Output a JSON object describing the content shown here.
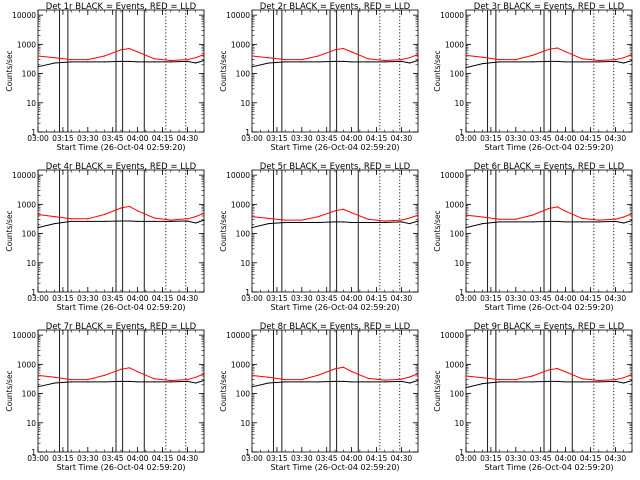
{
  "figure": {
    "xlabel": "Start Time (26-Oct-04 02:59:20)",
    "ylabel": "Counts/sec",
    "colors": {
      "events": "#000000",
      "lld": "#ff0000",
      "axes": "#000000"
    }
  },
  "chart_data": [
    {
      "type": "line",
      "title": "Det 1r BLACK = Events, RED = LLD",
      "xlabel": "Start Time (26-Oct-04 02:59:20)",
      "ylabel": "Counts/sec",
      "xticks": [
        "03:00",
        "03:15",
        "03:30",
        "03:45",
        "04:00",
        "04:15",
        "04:30"
      ],
      "yticks": [
        "1",
        "10",
        "100",
        "1000",
        "10000"
      ],
      "xlim": [
        "03:00",
        "04:40"
      ],
      "ylim": [
        1,
        15000
      ],
      "yscale": "log",
      "grid": false,
      "solid_markers": [
        "03:13",
        "03:18",
        "03:47",
        "03:51",
        "04:04"
      ],
      "dotted_markers": [
        "04:17",
        "04:29"
      ],
      "series": [
        {
          "name": "LLD",
          "color": "#ff0000",
          "x": [
            "03:00",
            "03:10",
            "03:20",
            "03:30",
            "03:40",
            "03:50",
            "03:55",
            "04:00",
            "04:10",
            "04:20",
            "04:30",
            "04:35",
            "04:40"
          ],
          "values": [
            400,
            350,
            300,
            300,
            400,
            650,
            720,
            550,
            320,
            280,
            300,
            350,
            450
          ]
        },
        {
          "name": "Events",
          "color": "#000000",
          "x": [
            "03:00",
            "03:10",
            "03:20",
            "03:30",
            "03:40",
            "03:50",
            "03:55",
            "04:00",
            "04:10",
            "04:20",
            "04:30",
            "04:35",
            "04:40"
          ],
          "values": [
            170,
            230,
            250,
            250,
            250,
            260,
            260,
            250,
            250,
            250,
            260,
            230,
            280
          ]
        }
      ]
    },
    {
      "type": "line",
      "title": "Det 2r BLACK = Events, RED = LLD",
      "xlabel": "Start Time (26-Oct-04 02:59:20)",
      "ylabel": "Counts/sec",
      "xticks": [
        "03:00",
        "03:15",
        "03:30",
        "03:45",
        "04:00",
        "04:15",
        "04:30"
      ],
      "yticks": [
        "1",
        "10",
        "100",
        "1000",
        "10000"
      ],
      "xlim": [
        "03:00",
        "04:40"
      ],
      "ylim": [
        1,
        15000
      ],
      "yscale": "log",
      "grid": false,
      "solid_markers": [
        "03:13",
        "03:18",
        "03:47",
        "03:51",
        "04:04"
      ],
      "dotted_markers": [
        "04:17",
        "04:29"
      ],
      "series": [
        {
          "name": "LLD",
          "color": "#ff0000",
          "x": [
            "03:00",
            "03:10",
            "03:20",
            "03:30",
            "03:40",
            "03:50",
            "03:55",
            "04:00",
            "04:10",
            "04:20",
            "04:30",
            "04:35",
            "04:40"
          ],
          "values": [
            400,
            350,
            300,
            300,
            400,
            650,
            720,
            550,
            320,
            280,
            300,
            350,
            450
          ]
        },
        {
          "name": "Events",
          "color": "#000000",
          "x": [
            "03:00",
            "03:10",
            "03:20",
            "03:30",
            "03:40",
            "03:50",
            "03:55",
            "04:00",
            "04:10",
            "04:20",
            "04:30",
            "04:35",
            "04:40"
          ],
          "values": [
            170,
            230,
            250,
            250,
            250,
            260,
            260,
            250,
            250,
            250,
            260,
            230,
            280
          ]
        }
      ]
    },
    {
      "type": "line",
      "title": "Det 3r BLACK = Events, RED = LLD",
      "xlabel": "Start Time (26-Oct-04 02:59:20)",
      "ylabel": "Counts/sec",
      "xticks": [
        "03:00",
        "03:15",
        "03:30",
        "03:45",
        "04:00",
        "04:15",
        "04:30"
      ],
      "yticks": [
        "1",
        "10",
        "100",
        "1000",
        "10000"
      ],
      "xlim": [
        "03:00",
        "04:40"
      ],
      "ylim": [
        1,
        15000
      ],
      "yscale": "log",
      "grid": false,
      "solid_markers": [
        "03:13",
        "03:18",
        "03:47",
        "03:51",
        "04:04"
      ],
      "dotted_markers": [
        "04:17",
        "04:29"
      ],
      "series": [
        {
          "name": "LLD",
          "color": "#ff0000",
          "x": [
            "03:00",
            "03:10",
            "03:20",
            "03:30",
            "03:40",
            "03:50",
            "03:55",
            "04:00",
            "04:10",
            "04:20",
            "04:30",
            "04:35",
            "04:40"
          ],
          "values": [
            420,
            360,
            300,
            300,
            420,
            680,
            750,
            560,
            320,
            280,
            300,
            350,
            450
          ]
        },
        {
          "name": "Events",
          "color": "#000000",
          "x": [
            "03:00",
            "03:10",
            "03:20",
            "03:30",
            "03:40",
            "03:50",
            "03:55",
            "04:00",
            "04:10",
            "04:20",
            "04:30",
            "04:35",
            "04:40"
          ],
          "values": [
            160,
            220,
            250,
            250,
            250,
            260,
            260,
            250,
            250,
            250,
            260,
            230,
            280
          ]
        }
      ]
    },
    {
      "type": "line",
      "title": "Det 4r BLACK = Events, RED = LLD",
      "xlabel": "Start Time (26-Oct-04 02:59:20)",
      "ylabel": "Counts/sec",
      "xticks": [
        "03:00",
        "03:15",
        "03:30",
        "03:45",
        "04:00",
        "04:15",
        "04:30"
      ],
      "yticks": [
        "1",
        "10",
        "100",
        "1000",
        "10000"
      ],
      "xlim": [
        "03:00",
        "04:40"
      ],
      "ylim": [
        1,
        15000
      ],
      "yscale": "log",
      "grid": false,
      "solid_markers": [
        "03:13",
        "03:18",
        "03:47",
        "03:51",
        "04:04"
      ],
      "dotted_markers": [
        "04:17",
        "04:29"
      ],
      "series": [
        {
          "name": "LLD",
          "color": "#ff0000",
          "x": [
            "03:00",
            "03:10",
            "03:20",
            "03:30",
            "03:40",
            "03:50",
            "03:55",
            "04:00",
            "04:10",
            "04:20",
            "04:30",
            "04:35",
            "04:40"
          ],
          "values": [
            450,
            380,
            320,
            320,
            450,
            750,
            850,
            600,
            340,
            290,
            320,
            380,
            500
          ]
        },
        {
          "name": "Events",
          "color": "#000000",
          "x": [
            "03:00",
            "03:10",
            "03:20",
            "03:30",
            "03:40",
            "03:50",
            "03:55",
            "04:00",
            "04:10",
            "04:20",
            "04:30",
            "04:35",
            "04:40"
          ],
          "values": [
            160,
            220,
            260,
            260,
            260,
            270,
            270,
            260,
            260,
            260,
            270,
            230,
            290
          ]
        }
      ]
    },
    {
      "type": "line",
      "title": "Det 5r BLACK = Events, RED = LLD",
      "xlabel": "Start Time (26-Oct-04 02:59:20)",
      "ylabel": "Counts/sec",
      "xticks": [
        "03:00",
        "03:15",
        "03:30",
        "03:45",
        "04:00",
        "04:15",
        "04:30"
      ],
      "yticks": [
        "1",
        "10",
        "100",
        "1000",
        "10000"
      ],
      "xlim": [
        "03:00",
        "04:40"
      ],
      "ylim": [
        1,
        15000
      ],
      "yscale": "log",
      "grid": false,
      "solid_markers": [
        "03:13",
        "03:18",
        "03:47",
        "03:51",
        "04:04"
      ],
      "dotted_markers": [
        "04:17",
        "04:29"
      ],
      "series": [
        {
          "name": "LLD",
          "color": "#ff0000",
          "x": [
            "03:00",
            "03:10",
            "03:20",
            "03:30",
            "03:40",
            "03:50",
            "03:55",
            "04:00",
            "04:10",
            "04:20",
            "04:30",
            "04:35",
            "04:40"
          ],
          "values": [
            380,
            330,
            290,
            290,
            380,
            600,
            680,
            520,
            310,
            270,
            290,
            340,
            430
          ]
        },
        {
          "name": "Events",
          "color": "#000000",
          "x": [
            "03:00",
            "03:10",
            "03:20",
            "03:30",
            "03:40",
            "03:50",
            "03:55",
            "04:00",
            "04:10",
            "04:20",
            "04:30",
            "04:35",
            "04:40"
          ],
          "values": [
            160,
            220,
            240,
            240,
            240,
            250,
            250,
            240,
            240,
            240,
            250,
            220,
            270
          ]
        }
      ]
    },
    {
      "type": "line",
      "title": "Det 6r BLACK = Events, RED = LLD",
      "xlabel": "Start Time (26-Oct-04 02:59:20)",
      "ylabel": "Counts/sec",
      "xticks": [
        "03:00",
        "03:15",
        "03:30",
        "03:45",
        "04:00",
        "04:15",
        "04:30"
      ],
      "yticks": [
        "1",
        "10",
        "100",
        "1000",
        "10000"
      ],
      "xlim": [
        "03:00",
        "04:40"
      ],
      "ylim": [
        1,
        15000
      ],
      "yscale": "log",
      "grid": false,
      "solid_markers": [
        "03:13",
        "03:18",
        "03:47",
        "03:51",
        "04:04"
      ],
      "dotted_markers": [
        "04:17",
        "04:29"
      ],
      "series": [
        {
          "name": "LLD",
          "color": "#ff0000",
          "x": [
            "03:00",
            "03:10",
            "03:20",
            "03:30",
            "03:40",
            "03:50",
            "03:55",
            "04:00",
            "04:10",
            "04:20",
            "04:30",
            "04:35",
            "04:40"
          ],
          "values": [
            430,
            370,
            310,
            310,
            430,
            720,
            820,
            580,
            330,
            290,
            310,
            370,
            480
          ]
        },
        {
          "name": "Events",
          "color": "#000000",
          "x": [
            "03:00",
            "03:10",
            "03:20",
            "03:30",
            "03:40",
            "03:50",
            "03:55",
            "04:00",
            "04:10",
            "04:20",
            "04:30",
            "04:35",
            "04:40"
          ],
          "values": [
            160,
            220,
            250,
            250,
            250,
            260,
            260,
            250,
            250,
            250,
            260,
            230,
            280
          ]
        }
      ]
    },
    {
      "type": "line",
      "title": "Det 7r BLACK = Events, RED = LLD",
      "xlabel": "Start Time (26-Oct-04 02:59:20)",
      "ylabel": "Counts/sec",
      "xticks": [
        "03:00",
        "03:15",
        "03:30",
        "03:45",
        "04:00",
        "04:15",
        "04:30"
      ],
      "yticks": [
        "1",
        "10",
        "100",
        "1000",
        "10000"
      ],
      "xlim": [
        "03:00",
        "04:40"
      ],
      "ylim": [
        1,
        15000
      ],
      "yscale": "log",
      "grid": false,
      "solid_markers": [
        "03:13",
        "03:18",
        "03:47",
        "03:51",
        "04:04"
      ],
      "dotted_markers": [
        "04:17",
        "04:29"
      ],
      "series": [
        {
          "name": "LLD",
          "color": "#ff0000",
          "x": [
            "03:00",
            "03:10",
            "03:20",
            "03:30",
            "03:40",
            "03:50",
            "03:55",
            "04:00",
            "04:10",
            "04:20",
            "04:30",
            "04:35",
            "04:40"
          ],
          "values": [
            420,
            360,
            300,
            300,
            420,
            680,
            760,
            560,
            320,
            280,
            300,
            360,
            470
          ]
        },
        {
          "name": "Events",
          "color": "#000000",
          "x": [
            "03:00",
            "03:10",
            "03:20",
            "03:30",
            "03:40",
            "03:50",
            "03:55",
            "04:00",
            "04:10",
            "04:20",
            "04:30",
            "04:35",
            "04:40"
          ],
          "values": [
            170,
            230,
            250,
            250,
            250,
            260,
            260,
            250,
            250,
            250,
            260,
            230,
            280
          ]
        }
      ]
    },
    {
      "type": "line",
      "title": "Det 8r BLACK = Events, RED = LLD",
      "xlabel": "Start Time (26-Oct-04 02:59:20)",
      "ylabel": "Counts/sec",
      "xticks": [
        "03:00",
        "03:15",
        "03:30",
        "03:45",
        "04:00",
        "04:15",
        "04:30"
      ],
      "yticks": [
        "1",
        "10",
        "100",
        "1000",
        "10000"
      ],
      "xlim": [
        "03:00",
        "04:40"
      ],
      "ylim": [
        1,
        15000
      ],
      "yscale": "log",
      "grid": false,
      "solid_markers": [
        "03:13",
        "03:18",
        "03:47",
        "03:51",
        "04:04"
      ],
      "dotted_markers": [
        "04:17",
        "04:29"
      ],
      "series": [
        {
          "name": "LLD",
          "color": "#ff0000",
          "x": [
            "03:00",
            "03:10",
            "03:20",
            "03:30",
            "03:40",
            "03:50",
            "03:55",
            "04:00",
            "04:10",
            "04:20",
            "04:30",
            "04:35",
            "04:40"
          ],
          "values": [
            420,
            360,
            300,
            300,
            430,
            700,
            800,
            570,
            330,
            290,
            310,
            370,
            480
          ]
        },
        {
          "name": "Events",
          "color": "#000000",
          "x": [
            "03:00",
            "03:10",
            "03:20",
            "03:30",
            "03:40",
            "03:50",
            "03:55",
            "04:00",
            "04:10",
            "04:20",
            "04:30",
            "04:35",
            "04:40"
          ],
          "values": [
            170,
            230,
            250,
            250,
            250,
            260,
            260,
            250,
            250,
            250,
            260,
            230,
            280
          ]
        }
      ]
    },
    {
      "type": "line",
      "title": "Det 9r BLACK = Events, RED = LLD",
      "xlabel": "Start Time (26-Oct-04 02:59:20)",
      "ylabel": "Counts/sec",
      "xticks": [
        "03:00",
        "03:15",
        "03:30",
        "03:45",
        "04:00",
        "04:15",
        "04:30"
      ],
      "yticks": [
        "1",
        "10",
        "100",
        "1000",
        "10000"
      ],
      "xlim": [
        "03:00",
        "04:40"
      ],
      "ylim": [
        1,
        15000
      ],
      "yscale": "log",
      "grid": false,
      "solid_markers": [
        "03:13",
        "03:18",
        "03:47",
        "03:51",
        "04:04"
      ],
      "dotted_markers": [
        "04:17",
        "04:29"
      ],
      "series": [
        {
          "name": "LLD",
          "color": "#ff0000",
          "x": [
            "03:00",
            "03:10",
            "03:20",
            "03:30",
            "03:40",
            "03:50",
            "03:55",
            "04:00",
            "04:10",
            "04:20",
            "04:30",
            "04:35",
            "04:40"
          ],
          "values": [
            400,
            350,
            300,
            300,
            400,
            650,
            720,
            550,
            320,
            280,
            300,
            350,
            450
          ]
        },
        {
          "name": "Events",
          "color": "#000000",
          "x": [
            "03:00",
            "03:10",
            "03:20",
            "03:30",
            "03:40",
            "03:50",
            "03:55",
            "04:00",
            "04:10",
            "04:20",
            "04:30",
            "04:35",
            "04:40"
          ],
          "values": [
            160,
            220,
            250,
            250,
            250,
            260,
            260,
            250,
            250,
            250,
            260,
            230,
            280
          ]
        }
      ]
    }
  ]
}
